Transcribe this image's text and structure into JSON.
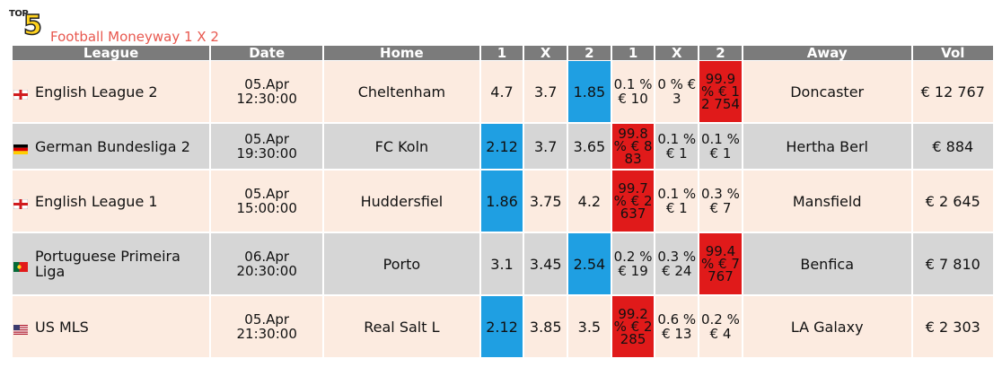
{
  "header": {
    "logo_top": "TOP",
    "logo_number": "5",
    "title": "Football Moneyway 1 X 2"
  },
  "columns": [
    "League",
    "Date",
    "Home",
    "1",
    "X",
    "2",
    "1",
    "X",
    "2",
    "Away",
    "Vol"
  ],
  "colors": {
    "header_bg": "#7b7b7b",
    "row_a": "#fcebe0",
    "row_b": "#d6d6d6",
    "blue": "#1f9fe2",
    "red": "#e01a1a",
    "title": "#e8584f"
  },
  "rows": [
    {
      "flag": "england-flag-icon",
      "league": "English League 2",
      "date": "05.Apr",
      "time": "12:30:00",
      "home": "Cheltenham",
      "o1": "4.7",
      "ox": "3.7",
      "o2": "1.85",
      "p1": "0.1 % € 10",
      "px": "0 % € 3",
      "p2": "99.9 % € 12 754",
      "away": "Doncaster",
      "vol": "€ 12 767",
      "best_odd": "o2",
      "top_money": "p2"
    },
    {
      "flag": "germany-flag-icon",
      "league": "German Bundesliga 2",
      "date": "05.Apr",
      "time": "19:30:00",
      "home": "FC Koln",
      "o1": "2.12",
      "ox": "3.7",
      "o2": "3.65",
      "p1": "99.8 % € 883",
      "px": "0.1 % € 1",
      "p2": "0.1 % € 1",
      "away": "Hertha Berl",
      "vol": "€ 884",
      "best_odd": "o1",
      "top_money": "p1"
    },
    {
      "flag": "england-flag-icon",
      "league": "English League 1",
      "date": "05.Apr",
      "time": "15:00:00",
      "home": "Huddersfiel",
      "o1": "1.86",
      "ox": "3.75",
      "o2": "4.2",
      "p1": "99.7 % € 2 637",
      "px": "0.1 % € 1",
      "p2": "0.3 % € 7",
      "away": "Mansfield",
      "vol": "€ 2 645",
      "best_odd": "o1",
      "top_money": "p1"
    },
    {
      "flag": "portugal-flag-icon",
      "league": "Portuguese Primeira Liga",
      "date": "06.Apr",
      "time": "20:30:00",
      "home": "Porto",
      "o1": "3.1",
      "ox": "3.45",
      "o2": "2.54",
      "p1": "0.2 % € 19",
      "px": "0.3 % € 24",
      "p2": "99.4 % € 7 767",
      "away": "Benfica",
      "vol": "€ 7 810",
      "best_odd": "o2",
      "top_money": "p2"
    },
    {
      "flag": "usa-flag-icon",
      "league": "US MLS",
      "date": "05.Apr",
      "time": "21:30:00",
      "home": "Real Salt L",
      "o1": "2.12",
      "ox": "3.85",
      "o2": "3.5",
      "p1": "99.2 % € 2 285",
      "px": "0.6 % € 13",
      "p2": "0.2 % € 4",
      "away": "LA Galaxy",
      "vol": "€ 2 303",
      "best_odd": "o1",
      "top_money": "p1"
    }
  ]
}
